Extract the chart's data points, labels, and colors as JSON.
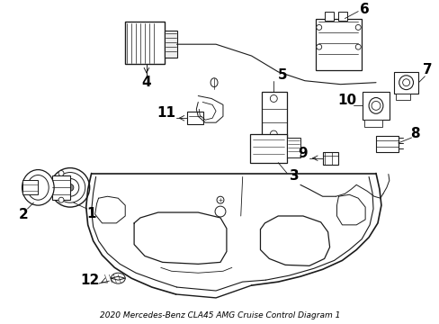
{
  "title": "2020 Mercedes-Benz CLA45 AMG Cruise Control Diagram 1",
  "background_color": "#ffffff",
  "line_color": "#1a1a1a",
  "text_color": "#000000",
  "figsize": [
    4.89,
    3.6
  ],
  "dpi": 100,
  "font_size": 9,
  "font_weight": "bold",
  "caption": "2020 Mercedes-Benz CLA45 AMG Cruise Control Diagram 1"
}
